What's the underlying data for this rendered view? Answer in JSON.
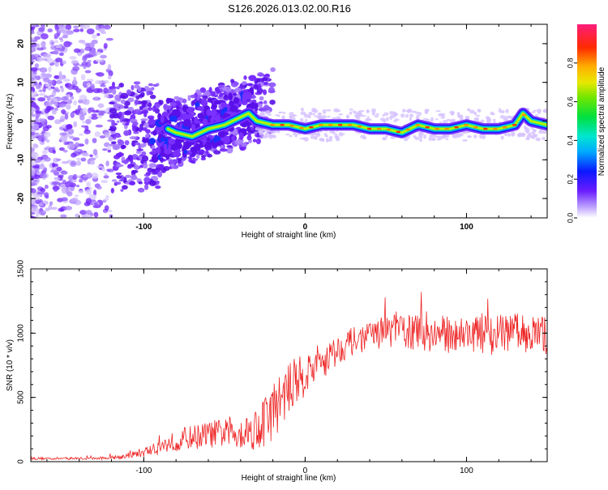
{
  "title": "S126.2026.013.02.00.R16",
  "colors": {
    "snr_line": "#ee2222",
    "axis": "#000000",
    "background": "#ffffff"
  },
  "chart_data": [
    {
      "type": "heatmap",
      "title": "S126.2026.013.02.00.R16",
      "xlabel": "Height of straight line (km)",
      "ylabel": "Frequency (Hz)",
      "xlim": [
        -170,
        150
      ],
      "ylim": [
        -25,
        25
      ],
      "xticks": [
        -100,
        0,
        100
      ],
      "xtick_labels": [
        "-100",
        "0",
        "100"
      ],
      "yticks": [
        -20,
        -10,
        0,
        10,
        20
      ],
      "ytick_labels": [
        "-20",
        "-10",
        "0",
        "10",
        "20"
      ],
      "colorbar": {
        "label": "Normalized spectral amplitude",
        "range": [
          0,
          1
        ],
        "ticks": [
          0.0,
          0.2,
          0.4,
          0.6,
          0.8
        ],
        "tick_labels": [
          "0.0",
          "0.2",
          "0.4",
          "0.6",
          "0.8"
        ]
      },
      "ridge": {
        "description_free": true,
        "x": [
          -85,
          -80,
          -70,
          -60,
          -50,
          -40,
          -35,
          -30,
          -20,
          -10,
          0,
          10,
          20,
          30,
          40,
          50,
          60,
          70,
          80,
          90,
          100,
          110,
          120,
          130,
          135,
          140,
          150
        ],
        "freq": [
          -2,
          -3,
          -4,
          -2,
          -1,
          1,
          2,
          0,
          -1,
          -1,
          -2,
          -1,
          -1,
          -1,
          -2,
          -2,
          -3,
          -1,
          -2,
          -2,
          -1,
          -2,
          -2,
          -1,
          2,
          0,
          -1
        ]
      }
    },
    {
      "type": "line",
      "xlabel": "Height of straight line (km)",
      "ylabel": "SNR (10 * v/v)",
      "xlim": [
        -170,
        150
      ],
      "ylim": [
        0,
        1500
      ],
      "xticks": [
        -100,
        0,
        100
      ],
      "xtick_labels": [
        "-100",
        "0",
        "100"
      ],
      "yticks": [
        0,
        500,
        1000,
        1500
      ],
      "ytick_labels": [
        "0",
        "500",
        "1000",
        "1500"
      ],
      "series": [
        {
          "name": "SNR",
          "x": [
            -170,
            -150,
            -130,
            -115,
            -105,
            -95,
            -85,
            -75,
            -65,
            -55,
            -45,
            -38,
            -32,
            -28,
            -22,
            -18,
            -12,
            -6,
            0,
            8,
            16,
            26,
            36,
            46,
            56,
            70,
            85,
            100,
            115,
            130,
            150
          ],
          "mean": [
            25,
            25,
            25,
            35,
            60,
            90,
            140,
            180,
            200,
            220,
            220,
            230,
            250,
            280,
            350,
            430,
            540,
            620,
            680,
            760,
            830,
            920,
            960,
            1000,
            1030,
            1000,
            990,
            1000,
            980,
            1010,
            980
          ],
          "noise": [
            10,
            10,
            10,
            15,
            30,
            50,
            70,
            90,
            100,
            110,
            120,
            130,
            160,
            200,
            220,
            230,
            200,
            180,
            170,
            160,
            130,
            110,
            110,
            120,
            140,
            150,
            150,
            140,
            150,
            150,
            150
          ]
        }
      ]
    }
  ]
}
